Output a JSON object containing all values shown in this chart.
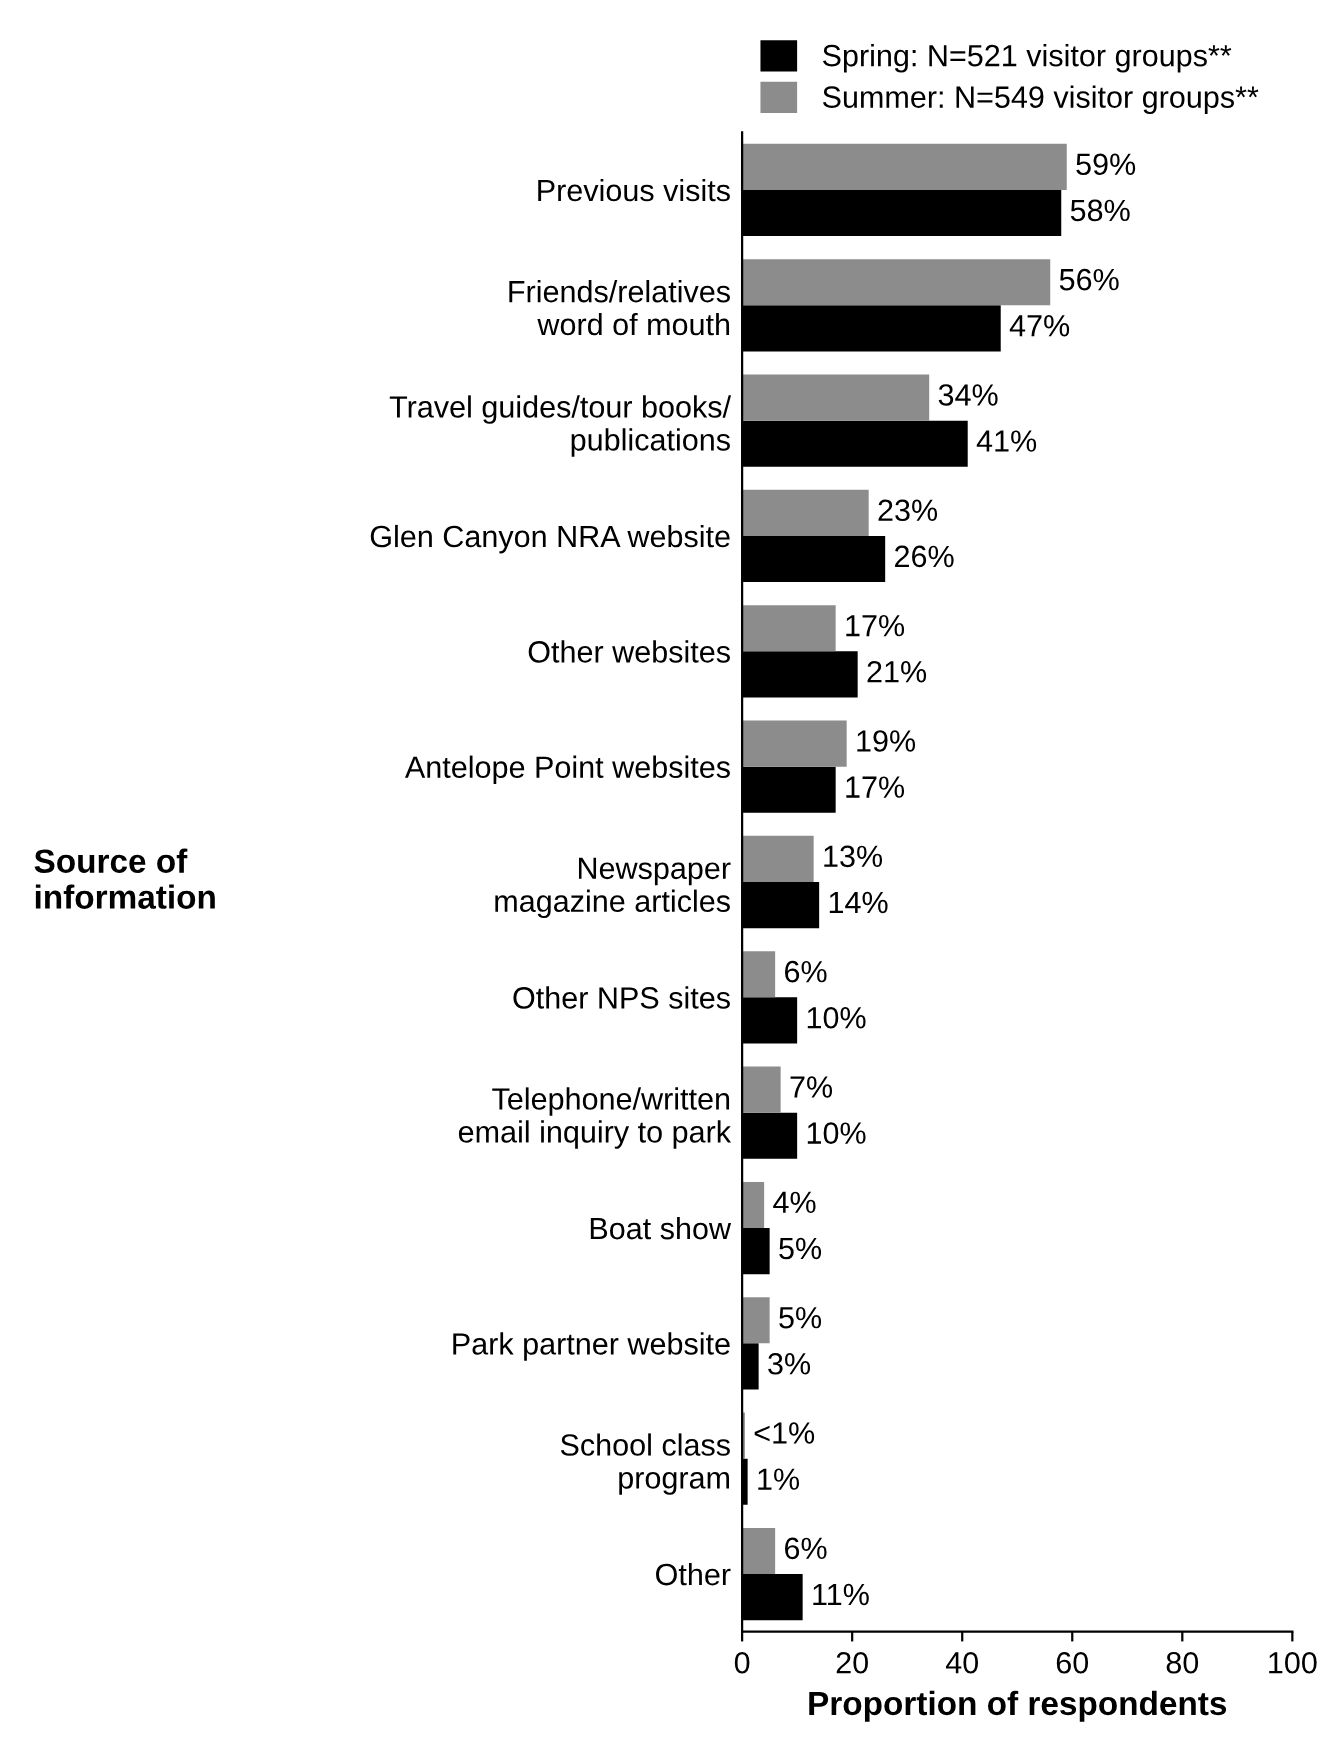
{
  "chart_data": {
    "type": "bar",
    "orientation": "horizontal",
    "xlabel": "Proportion of respondents",
    "ylabel": "Source of\ninformation",
    "categories": [
      "Previous visits",
      "Friends/relatives\nword of mouth",
      "Travel guides/tour books/\npublications",
      "Glen Canyon NRA website",
      "Other websites",
      "Antelope Point websites",
      "Newspaper\nmagazine articles",
      "Other NPS sites",
      "Telephone/written\nemail inquiry to park",
      "Boat show",
      "Park partner website",
      "School class\nprogram",
      "Other"
    ],
    "series": [
      {
        "name": "Spring: N=521 visitor groups**",
        "color": "#000000",
        "values": [
          58,
          47,
          41,
          26,
          21,
          17,
          14,
          10,
          10,
          5,
          3,
          1,
          11
        ],
        "value_labels": [
          "58%",
          "47%",
          "41%",
          "26%",
          "21%",
          "17%",
          "14%",
          "10%",
          "10%",
          "5%",
          "3%",
          "1%",
          "11%"
        ]
      },
      {
        "name": "Summer: N=549 visitor groups**",
        "color": "#8c8c8c",
        "values": [
          59,
          56,
          34,
          23,
          17,
          19,
          13,
          6,
          7,
          4,
          5,
          0.5,
          6
        ],
        "value_labels": [
          "59%",
          "56%",
          "34%",
          "23%",
          "17%",
          "19%",
          "13%",
          "6%",
          "7%",
          "4%",
          "5%",
          "<1%",
          "6%"
        ]
      }
    ],
    "xlim": [
      0,
      100
    ],
    "xticks": [
      0,
      20,
      40,
      60,
      80,
      100
    ],
    "grid": false,
    "legend": "top"
  }
}
